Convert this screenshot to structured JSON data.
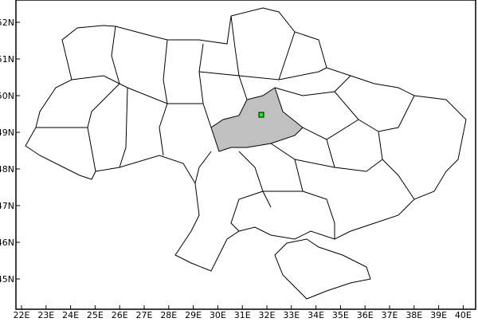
{
  "map": {
    "highlight_color": "#c0c0c0",
    "marker_color": "#00ff00",
    "border_color": "#000000",
    "lat_labels": [
      "52N",
      "51N",
      "50N",
      "49N",
      "48N",
      "47N",
      "46N",
      "45N"
    ],
    "lon_labels": [
      "22E",
      "23E",
      "24E",
      "25E",
      "26E",
      "27E",
      "28E",
      "29E",
      "30E",
      "31E",
      "32E",
      "33E",
      "34E",
      "35E",
      "36E",
      "37E",
      "38E",
      "39E",
      "40E"
    ]
  }
}
